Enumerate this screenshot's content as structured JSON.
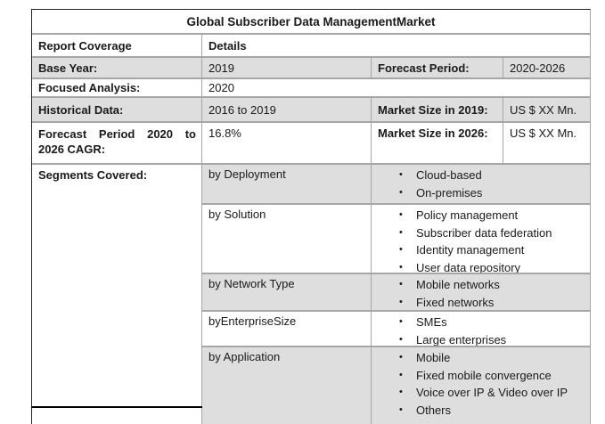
{
  "title": "Global Subscriber Data ManagementMarket",
  "header": {
    "col1": "Report Coverage",
    "col2": "Details"
  },
  "rows": {
    "base_year": {
      "label": "Base Year:",
      "value": "2019",
      "label2": "Forecast Period:",
      "value2": "2020-2026"
    },
    "focused_analysis": {
      "label": "Focused Analysis:",
      "value": "2020"
    },
    "historical_data": {
      "label": "Historical Data:",
      "value": "2016 to 2019",
      "label2": "Market Size in 2019:",
      "value2": "US $ XX Mn."
    },
    "forecast_cagr": {
      "label": "Forecast Period 2020 to 2026 CAGR:",
      "value": "16.8%",
      "label2": "Market Size in 2026:",
      "value2": "US $ XX Mn."
    },
    "segments": {
      "label": "Segments Covered:",
      "groups": [
        {
          "name": "by Deployment",
          "items": [
            "Cloud-based",
            "On-premises"
          ]
        },
        {
          "name": "by Solution",
          "items": [
            "Policy management",
            "Subscriber data federation",
            "Identity management",
            "User data repository"
          ]
        },
        {
          "name": "by Network Type",
          "items": [
            "Mobile networks",
            "Fixed networks"
          ]
        },
        {
          "name": "byEnterpriseSize",
          "items": [
            "SMEs",
            "Large enterprises"
          ]
        },
        {
          "name": "by Application",
          "items": [
            "Mobile",
            "Fixed mobile convergence",
            "Voice over IP & Video over IP",
            "Others"
          ]
        }
      ]
    }
  },
  "bullet_glyph": "•",
  "colors": {
    "row_shade": "#dedede",
    "border_gray": "#a6a6a6",
    "border_dark": "#222222",
    "text": "#1a1a1a"
  }
}
